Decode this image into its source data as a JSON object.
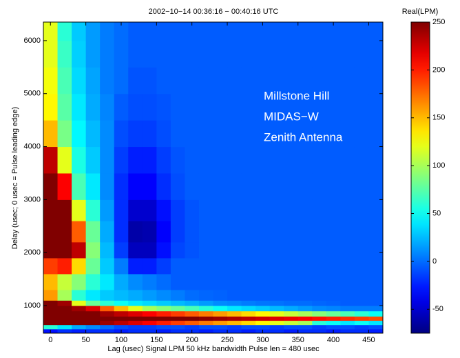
{
  "chart_data": {
    "type": "heatmap",
    "title": "2002−10−14  00:36:16 − 00:40:16 UTC",
    "xlabel": "Lag (usec)  Signal LPM  50 kHz bandwidth  Pulse len = 480 usec",
    "ylabel": "Delay (usec; 0 usec = Pulse leading edge)",
    "annotations": [
      "Millstone Hill",
      "MIDAS−W",
      "Zenith Antenna"
    ],
    "x": [
      0,
      20,
      40,
      60,
      80,
      100,
      120,
      140,
      160,
      180,
      200,
      220,
      240,
      260,
      280,
      300,
      320,
      340,
      360,
      380,
      400,
      420,
      440,
      460
    ],
    "y_edges": [
      480,
      560,
      640,
      720,
      800,
      900,
      1000,
      1100,
      1300,
      1600,
      1900,
      2200,
      2600,
      3000,
      3500,
      4000,
      4500,
      5000,
      5500,
      6000,
      6350
    ],
    "z": [
      [
        -30,
        -20,
        -25,
        -20,
        -20,
        -25,
        -20,
        -20,
        -25,
        -20,
        -20,
        -25,
        -20,
        -20,
        -25,
        -20,
        -20,
        -25,
        -20,
        -20,
        -25,
        -20,
        -20,
        -25
      ],
      [
        60,
        40,
        20,
        10,
        0,
        -10,
        -15,
        -15,
        -10,
        -10,
        -15,
        -10,
        -10,
        -15,
        -10,
        -10,
        -15,
        -10,
        -10,
        -15,
        -10,
        -10,
        -15,
        -10
      ],
      [
        250,
        250,
        250,
        250,
        240,
        230,
        220,
        210,
        200,
        190,
        180,
        170,
        160,
        150,
        140,
        130,
        120,
        110,
        100,
        60,
        50,
        40,
        50,
        40
      ],
      [
        250,
        250,
        250,
        250,
        250,
        250,
        250,
        250,
        250,
        250,
        250,
        245,
        240,
        235,
        230,
        225,
        220,
        215,
        210,
        205,
        200,
        195,
        190,
        185
      ],
      [
        250,
        250,
        250,
        250,
        240,
        230,
        220,
        210,
        200,
        190,
        180,
        170,
        160,
        150,
        140,
        130,
        120,
        110,
        100,
        90,
        80,
        70,
        60,
        50
      ],
      [
        250,
        250,
        240,
        220,
        180,
        150,
        120,
        100,
        90,
        80,
        70,
        60,
        50,
        40,
        35,
        30,
        25,
        20,
        15,
        10,
        8,
        5,
        5,
        5
      ],
      [
        250,
        240,
        120,
        80,
        60,
        50,
        40,
        35,
        30,
        25,
        20,
        15,
        10,
        8,
        5,
        3,
        2,
        0,
        0,
        -2,
        -3,
        -5,
        -5,
        -5
      ],
      [
        160,
        100,
        60,
        40,
        30,
        25,
        20,
        15,
        10,
        5,
        0,
        -2,
        -3,
        -5,
        -5,
        -5,
        -5,
        -5,
        -5,
        -5,
        -5,
        -5,
        -5,
        -5
      ],
      [
        150,
        110,
        90,
        60,
        40,
        20,
        10,
        5,
        0,
        -5,
        -5,
        -5,
        -5,
        -5,
        -5,
        -5,
        -5,
        -5,
        -5,
        -5,
        -5,
        -5,
        -5,
        -5
      ],
      [
        190,
        200,
        140,
        80,
        30,
        5,
        -25,
        -25,
        -15,
        -5,
        -5,
        -5,
        -5,
        -5,
        -5,
        -5,
        -5,
        -5,
        -5,
        -5,
        -5,
        -5,
        -5,
        -5
      ],
      [
        250,
        250,
        230,
        90,
        25,
        -15,
        -55,
        -55,
        -30,
        -12,
        -8,
        -5,
        -5,
        -5,
        -5,
        -5,
        -5,
        -5,
        -5,
        -5,
        -5,
        -5,
        -5,
        -5
      ],
      [
        250,
        250,
        180,
        80,
        20,
        -20,
        -62,
        -60,
        -35,
        -15,
        -8,
        -5,
        -5,
        -5,
        -5,
        -5,
        -5,
        -5,
        -5,
        -5,
        -5,
        -5,
        -5,
        -5
      ],
      [
        250,
        250,
        120,
        60,
        15,
        -20,
        -50,
        -50,
        -30,
        -15,
        -8,
        -5,
        -5,
        -5,
        -5,
        -5,
        -5,
        -5,
        -5,
        -5,
        -5,
        -5,
        -5,
        -5
      ],
      [
        250,
        210,
        70,
        40,
        10,
        -20,
        -35,
        -35,
        -20,
        -10,
        -5,
        -5,
        -5,
        -5,
        -5,
        -5,
        -5,
        -5,
        -5,
        -5,
        -5,
        -5,
        -5,
        -5
      ],
      [
        230,
        120,
        55,
        30,
        10,
        -15,
        -25,
        -25,
        -15,
        -8,
        -5,
        -5,
        -5,
        -5,
        -5,
        -5,
        -5,
        -5,
        -5,
        -5,
        -5,
        -5,
        -5,
        -5
      ],
      [
        150,
        85,
        45,
        25,
        10,
        -10,
        -15,
        -15,
        -10,
        -5,
        -5,
        -5,
        -5,
        -5,
        -5,
        -5,
        -5,
        -5,
        -5,
        -5,
        -5,
        -5,
        -5,
        -5
      ],
      [
        130,
        75,
        40,
        20,
        8,
        -5,
        -10,
        -10,
        -8,
        -5,
        -5,
        -5,
        -5,
        -5,
        -5,
        -5,
        -5,
        -5,
        -5,
        -5,
        -5,
        -5,
        -5,
        -5
      ],
      [
        125,
        70,
        35,
        18,
        5,
        0,
        -8,
        -8,
        -5,
        -5,
        -5,
        -5,
        -5,
        -5,
        -5,
        -5,
        -5,
        -5,
        -5,
        -5,
        -5,
        -5,
        -5,
        -5
      ],
      [
        120,
        65,
        32,
        15,
        5,
        0,
        -5,
        -5,
        -5,
        -5,
        -5,
        -5,
        -5,
        -5,
        -5,
        -5,
        -5,
        -5,
        -5,
        -5,
        -5,
        -5,
        -5,
        -5
      ],
      [
        120,
        60,
        30,
        15,
        5,
        0,
        -5,
        -5,
        -5,
        -5,
        -5,
        -5,
        -5,
        -5,
        -5,
        -5,
        -5,
        -5,
        -5,
        -5,
        -5,
        -5,
        -5,
        -5
      ]
    ],
    "xlim": [
      -10,
      470
    ],
    "ylim": [
      480,
      6350
    ],
    "xticks": [
      0,
      50,
      100,
      150,
      200,
      250,
      300,
      350,
      400,
      450
    ],
    "yticks": [
      1000,
      2000,
      3000,
      4000,
      5000,
      6000
    ],
    "colormap": "jet",
    "colorbar": {
      "label": "Real(LPM)",
      "clim": [
        -75,
        250
      ],
      "ticks": [
        -50,
        0,
        50,
        100,
        150,
        200,
        250
      ]
    }
  }
}
